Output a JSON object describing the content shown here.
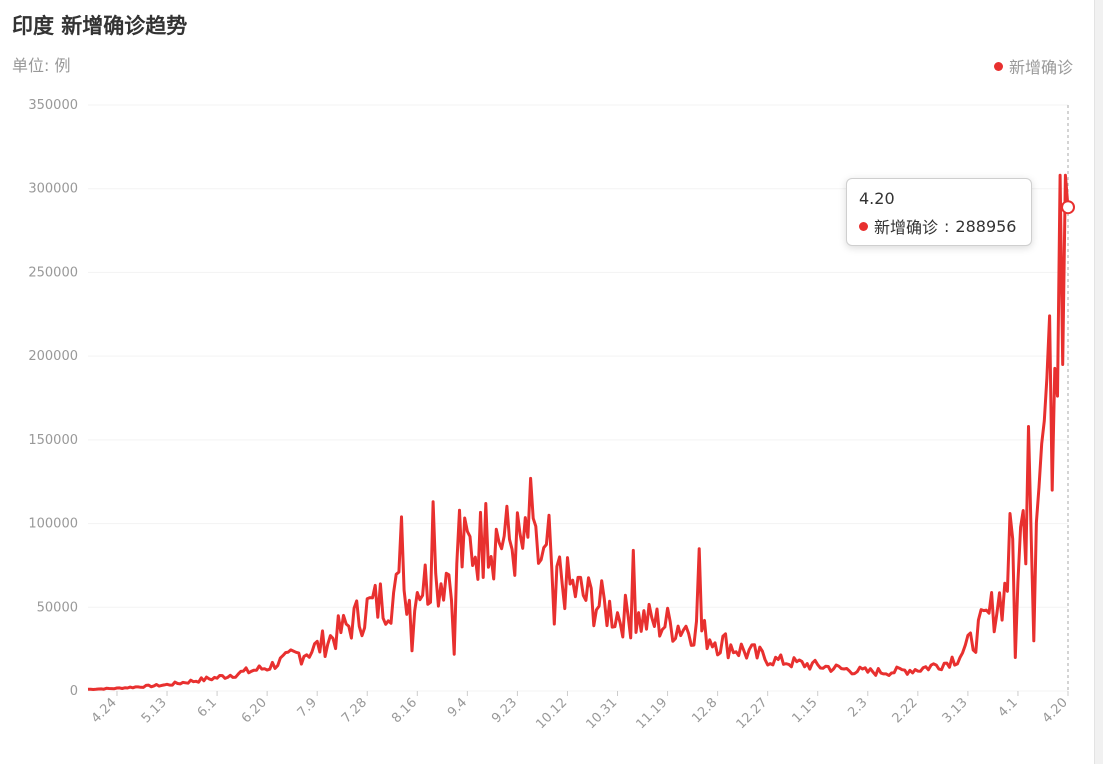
{
  "header": {
    "title": "印度 新增确诊趋势",
    "unit": "单位: 例"
  },
  "colors": {
    "series": "#e8302f",
    "grid": "#f3f3f3",
    "axis_text": "#999999"
  },
  "tooltip": {
    "date": "4.20",
    "series_name": "新增确诊",
    "value_text": "288956"
  },
  "chart_data": {
    "type": "line",
    "title": "印度 新增确诊趋势",
    "ylabel": "单位: 例",
    "ylim": [
      0,
      350000
    ],
    "yticks": [
      "0",
      "50000",
      "100000",
      "150000",
      "200000",
      "250000",
      "300000",
      "350000"
    ],
    "x_tick_labels": [
      "4.24",
      "5.13",
      "6.1",
      "6.20",
      "7.9",
      "7.28",
      "8.16",
      "9.4",
      "9.23",
      "10.12",
      "10.31",
      "11.19",
      "12.8",
      "12.27",
      "1.15",
      "2.3",
      "2.22",
      "3.13",
      "4.1",
      "4.20"
    ],
    "legend": "top-right",
    "grid": true,
    "series": [
      {
        "name": "新增确诊",
        "keypoints": [
          [
            "4.13",
            1000
          ],
          [
            "4.24",
            1600
          ],
          [
            "5.13",
            3700
          ],
          [
            "6.1",
            8000
          ],
          [
            "6.20",
            14000
          ],
          [
            "6.27",
            19000
          ],
          [
            "7.9",
            26000
          ],
          [
            "7.20",
            38000
          ],
          [
            "7.28",
            49000
          ],
          [
            "8.5",
            56000
          ],
          [
            "8.16",
            64000
          ],
          [
            "8.24",
            66000
          ],
          [
            "9.4",
            85000
          ],
          [
            "9.16",
            92000
          ],
          [
            "9.23",
            87000
          ],
          [
            "10.1",
            80000
          ],
          [
            "10.12",
            63000
          ],
          [
            "10.20",
            55000
          ],
          [
            "10.31",
            46000
          ],
          [
            "11.10",
            42000
          ],
          [
            "11.19",
            40000
          ],
          [
            "11.28",
            38000
          ],
          [
            "12.8",
            30000
          ],
          [
            "12.18",
            24000
          ],
          [
            "12.27",
            19000
          ],
          [
            "1.5",
            17000
          ],
          [
            "1.15",
            15000
          ],
          [
            "1.25",
            13000
          ],
          [
            "2.3",
            11500
          ],
          [
            "2.12",
            11500
          ],
          [
            "2.22",
            13000
          ],
          [
            "3.5",
            17000
          ],
          [
            "3.13",
            26000
          ],
          [
            "3.20",
            42000
          ],
          [
            "3.27",
            60000
          ],
          [
            "4.1",
            81000
          ],
          [
            "4.6",
            120000
          ],
          [
            "4.10",
            148000
          ],
          [
            "4.14",
            190000
          ],
          [
            "4.17",
            250000
          ],
          [
            "4.20",
            288956
          ]
        ]
      }
    ],
    "spikes": [
      [
        "8.10",
        104000
      ],
      [
        "8.14",
        24000
      ],
      [
        "8.22",
        113000
      ],
      [
        "8.30",
        22000
      ],
      [
        "9.1",
        108000
      ],
      [
        "9.11",
        112000
      ],
      [
        "9.28",
        127000
      ],
      [
        "10.5",
        105000
      ],
      [
        "10.7",
        40000
      ],
      [
        "11.6",
        84000
      ],
      [
        "12.1",
        85000
      ],
      [
        "3.29",
        106000
      ],
      [
        "3.31",
        20000
      ],
      [
        "4.5",
        158000
      ],
      [
        "4.7",
        30000
      ],
      [
        "4.12",
        187000
      ],
      [
        "4.14",
        120000
      ],
      [
        "4.17",
        308000
      ],
      [
        "4.18",
        195000
      ],
      [
        "4.19",
        308000
      ],
      [
        "4.20",
        199000
      ]
    ]
  }
}
